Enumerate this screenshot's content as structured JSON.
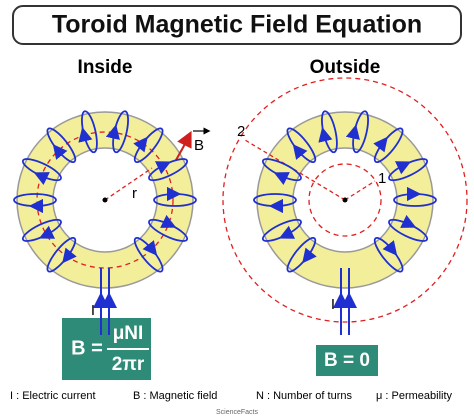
{
  "header": {
    "title": "Toroid Magnetic Field Equation"
  },
  "panels": [
    {
      "title": "Inside",
      "labels": {
        "field": "B",
        "radius": "r",
        "current": "I"
      },
      "equation": {
        "lhs": "B =",
        "numerator": "μNI",
        "denominator": "2πr"
      }
    },
    {
      "title": "Outside",
      "labels": {
        "outer_path": "2",
        "inner_path": "1",
        "current": "I"
      },
      "equation": {
        "text": "B = 0"
      }
    }
  ],
  "legend": [
    "I : Electric current",
    "B : Magnetic field",
    "N : Number of turns",
    "μ : Permeability"
  ],
  "credit": "ScienceFacts"
}
